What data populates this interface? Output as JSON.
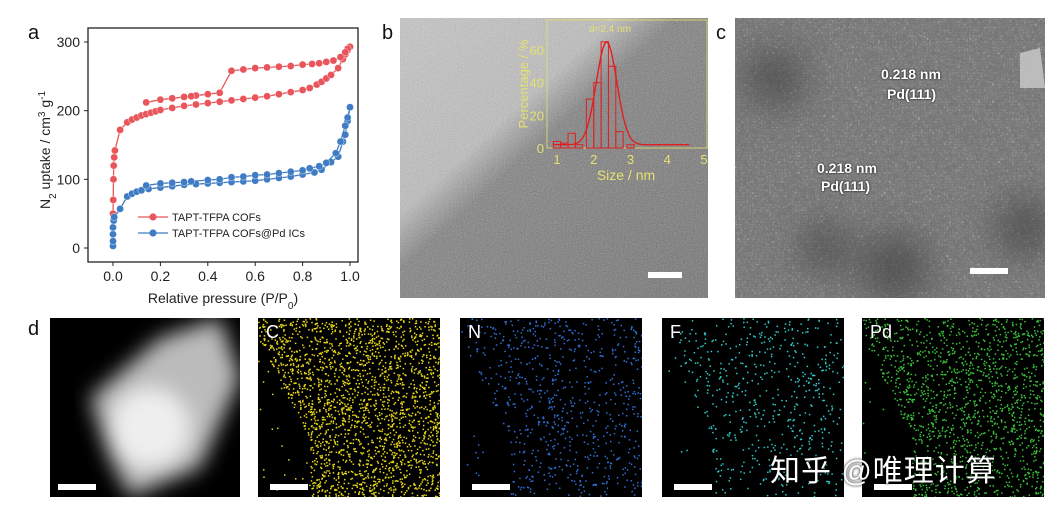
{
  "panels": {
    "a": "a",
    "b": "b",
    "c": "c",
    "d": "d"
  },
  "panel_b": {
    "annotation": "d=2.4 nm"
  },
  "panel_c": {
    "annotations": [
      {
        "spacing": "0.218 nm",
        "plane": "Pd(111)"
      },
      {
        "spacing": "0.218 nm",
        "plane": "Pd(111)"
      }
    ]
  },
  "maps": [
    {
      "element": "C",
      "color": "#e8d81a"
    },
    {
      "element": "N",
      "color": "#2f6fd8"
    },
    {
      "element": "F",
      "color": "#2fc9c9"
    },
    {
      "element": "Pd",
      "color": "#39c23a"
    }
  ],
  "watermark": "知乎 @唯理计算",
  "chart_data": [
    {
      "type": "line",
      "xlabel": "Relative pressure (P/P0)",
      "ylabel": "N2 uptake / cm3 g-1",
      "xlim": [
        -0.1,
        1.05
      ],
      "ylim": [
        -25,
        315
      ],
      "xticks": [
        "0.0",
        "0.2",
        "0.4",
        "0.6",
        "0.8",
        "1.0"
      ],
      "yticks": [
        "0",
        "100",
        "200",
        "300"
      ],
      "legend_position": "center-right",
      "series": [
        {
          "name": "TAPT-TFPA COFs",
          "color": "#e8555a",
          "adsorption": [
            [
              0,
              50
            ],
            [
              0.001,
              70
            ],
            [
              0.002,
              100
            ],
            [
              0.003,
              120
            ],
            [
              0.005,
              132
            ],
            [
              0.008,
              142
            ],
            [
              0.03,
              172
            ],
            [
              0.06,
              183
            ],
            [
              0.08,
              187
            ],
            [
              0.1,
              190
            ],
            [
              0.12,
              193
            ],
            [
              0.14,
              195
            ],
            [
              0.16,
              197
            ],
            [
              0.18,
              199
            ],
            [
              0.2,
              201
            ],
            [
              0.25,
              204
            ],
            [
              0.3,
              207
            ],
            [
              0.35,
              209
            ],
            [
              0.4,
              211
            ],
            [
              0.45,
              213
            ],
            [
              0.5,
              215
            ],
            [
              0.55,
              217
            ],
            [
              0.6,
              219
            ],
            [
              0.65,
              221
            ],
            [
              0.7,
              224
            ],
            [
              0.75,
              227
            ],
            [
              0.8,
              230
            ],
            [
              0.83,
              233
            ],
            [
              0.86,
              238
            ],
            [
              0.88,
              242
            ],
            [
              0.9,
              247
            ],
            [
              0.92,
              252
            ],
            [
              0.95,
              262
            ],
            [
              0.97,
              275
            ],
            [
              0.98,
              282
            ],
            [
              0.99,
              288
            ],
            [
              1.0,
              293
            ]
          ],
          "desorption": [
            [
              1.0,
              293
            ],
            [
              0.99,
              290
            ],
            [
              0.98,
              285
            ],
            [
              0.96,
              278
            ],
            [
              0.93,
              273
            ],
            [
              0.9,
              271
            ],
            [
              0.87,
              269
            ],
            [
              0.84,
              268
            ],
            [
              0.8,
              267
            ],
            [
              0.75,
              265
            ],
            [
              0.7,
              264
            ],
            [
              0.65,
              263
            ],
            [
              0.6,
              262
            ],
            [
              0.55,
              260
            ],
            [
              0.5,
              258
            ],
            [
              0.45,
              226
            ],
            [
              0.4,
              224
            ],
            [
              0.35,
              222
            ],
            [
              0.33,
              221
            ],
            [
              0.3,
              220
            ],
            [
              0.25,
              218
            ],
            [
              0.2,
              216
            ],
            [
              0.14,
              212
            ]
          ]
        },
        {
          "name": "TAPT-TFPA COFs@Pd ICs",
          "color": "#3f7cc4",
          "adsorption": [
            [
              0,
              3
            ],
            [
              0,
              10
            ],
            [
              0,
              20
            ],
            [
              0,
              30
            ],
            [
              0.003,
              40
            ],
            [
              0.005,
              45
            ],
            [
              0.03,
              57
            ],
            [
              0.06,
              75
            ],
            [
              0.08,
              79
            ],
            [
              0.1,
              82
            ],
            [
              0.12,
              84
            ],
            [
              0.15,
              86
            ],
            [
              0.2,
              88
            ],
            [
              0.25,
              90
            ],
            [
              0.3,
              92
            ],
            [
              0.35,
              93
            ],
            [
              0.4,
              94
            ],
            [
              0.45,
              95
            ],
            [
              0.5,
              96
            ],
            [
              0.55,
              97
            ],
            [
              0.6,
              98
            ],
            [
              0.65,
              100
            ],
            [
              0.7,
              102
            ],
            [
              0.75,
              104
            ],
            [
              0.8,
              107
            ],
            [
              0.85,
              110
            ],
            [
              0.88,
              114
            ],
            [
              0.92,
              125
            ],
            [
              0.95,
              133
            ],
            [
              0.97,
              155
            ],
            [
              0.98,
              165
            ],
            [
              0.99,
              185
            ],
            [
              1.0,
              205
            ]
          ],
          "desorption": [
            [
              1.0,
              205
            ],
            [
              0.99,
              190
            ],
            [
              0.98,
              178
            ],
            [
              0.96,
              155
            ],
            [
              0.94,
              138
            ],
            [
              0.9,
              124
            ],
            [
              0.87,
              119
            ],
            [
              0.83,
              116
            ],
            [
              0.8,
              113
            ],
            [
              0.75,
              111
            ],
            [
              0.7,
              109
            ],
            [
              0.65,
              107
            ],
            [
              0.6,
              106
            ],
            [
              0.55,
              104
            ],
            [
              0.5,
              103
            ],
            [
              0.45,
              100
            ],
            [
              0.4,
              99
            ],
            [
              0.33,
              97
            ],
            [
              0.3,
              96
            ],
            [
              0.25,
              95
            ],
            [
              0.2,
              94
            ],
            [
              0.14,
              91
            ]
          ]
        }
      ]
    },
    {
      "type": "bar",
      "annotation": "d=2.4 nm",
      "xlabel": "Size / nm",
      "ylabel": "Percentage / %",
      "xlim": [
        0.5,
        5
      ],
      "ylim": [
        0,
        70
      ],
      "xticks": [
        "1",
        "2",
        "3",
        "4",
        "5"
      ],
      "yticks": [
        "0",
        "20",
        "40",
        "60"
      ],
      "color": "#e02020",
      "bins": [
        1.0,
        1.2,
        1.4,
        1.6,
        1.9,
        2.1,
        2.3,
        2.5,
        2.7,
        3.0
      ],
      "values": [
        4,
        3,
        9,
        2,
        30,
        40,
        65,
        50,
        10,
        2
      ]
    }
  ]
}
